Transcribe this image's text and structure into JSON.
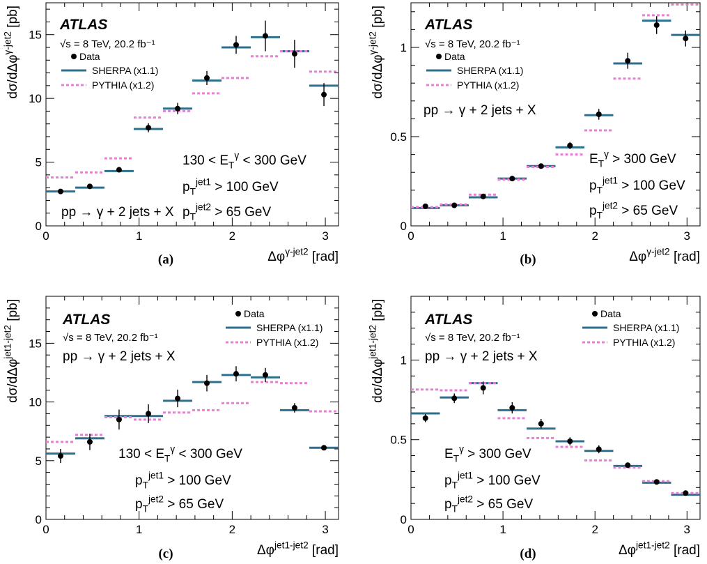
{
  "colors": {
    "data": "#000000",
    "sherpa": "#2e6f8e",
    "pythia": "#e77fd4"
  },
  "chart_data": [
    {
      "type": "scatter",
      "panel_caption": "(a)",
      "xlabel": "Δφ^{γ-jet2} [rad]",
      "ylabel": "dσ/dΔφ^{γ-jet2} [pb]",
      "xlim": [
        0,
        3.1416
      ],
      "ylim": [
        0,
        17.5
      ],
      "xticks": [
        0,
        1,
        2,
        3
      ],
      "yticks": [
        0,
        5,
        10,
        15
      ],
      "experiment": "ATLAS",
      "energy_label": "√s = 8 TeV, 20.2 fb⁻¹",
      "legend": {
        "data": "Data",
        "sherpa": "SHERPA (x1.1)",
        "pythia": "PYTHIA (x1.2)"
      },
      "annotations": [
        "130 < E_T^γ < 300 GeV",
        "p_T^{jet1} > 100 GeV",
        "p_T^{jet2} > 65 GeV",
        "pp → γ + 2 jets + X"
      ],
      "bin_edges": [
        0,
        0.314,
        0.628,
        0.942,
        1.257,
        1.571,
        1.885,
        2.199,
        2.513,
        2.827,
        3.1416
      ],
      "data_points": {
        "x": [
          0.157,
          0.471,
          0.785,
          1.1,
          1.414,
          1.728,
          2.042,
          2.356,
          2.67,
          2.985
        ],
        "y": [
          2.7,
          3.1,
          4.4,
          7.7,
          9.2,
          11.6,
          14.2,
          14.9,
          13.5,
          10.3
        ],
        "err": [
          0.12,
          0.15,
          0.2,
          0.35,
          0.45,
          0.55,
          0.7,
          1.2,
          1.1,
          0.9
        ]
      },
      "series": [
        {
          "name": "SHERPA (x1.1)",
          "values": [
            2.7,
            3.0,
            4.3,
            7.6,
            9.2,
            11.4,
            14.0,
            14.8,
            13.7,
            11.0
          ]
        },
        {
          "name": "PYTHIA (x1.2)",
          "values": [
            3.8,
            4.2,
            5.3,
            8.5,
            9.0,
            10.4,
            11.6,
            13.3,
            13.7,
            12.1
          ]
        }
      ]
    },
    {
      "type": "scatter",
      "panel_caption": "(b)",
      "xlabel": "Δφ^{γ-jet2} [rad]",
      "ylabel": "dσ/dΔφ^{γ-jet2} [pb]",
      "xlim": [
        0,
        3.1416
      ],
      "ylim": [
        0,
        1.25
      ],
      "xticks": [
        0,
        1,
        2,
        3
      ],
      "yticks": [
        0,
        0.5,
        1
      ],
      "experiment": "ATLAS",
      "energy_label": "√s = 8 TeV, 20.2 fb⁻¹",
      "legend": {
        "data": "Data",
        "sherpa": "SHERPA (x1.1)",
        "pythia": "PYTHIA (x1.2)"
      },
      "annotations": [
        "pp → γ + 2 jets + X",
        "E_T^γ > 300 GeV",
        "p_T^{jet1} > 100 GeV",
        "p_T^{jet2} > 65 GeV"
      ],
      "bin_edges": [
        0,
        0.314,
        0.628,
        0.942,
        1.257,
        1.571,
        1.885,
        2.199,
        2.513,
        2.827,
        3.1416
      ],
      "data_points": {
        "x": [
          0.157,
          0.471,
          0.785,
          1.1,
          1.414,
          1.728,
          2.042,
          2.356,
          2.67,
          2.985
        ],
        "y": [
          0.11,
          0.115,
          0.165,
          0.265,
          0.335,
          0.45,
          0.625,
          0.925,
          1.125,
          1.05
        ],
        "err": [
          0.008,
          0.008,
          0.01,
          0.012,
          0.015,
          0.02,
          0.03,
          0.045,
          0.05,
          0.045
        ]
      },
      "series": [
        {
          "name": "SHERPA (x1.1)",
          "values": [
            0.1,
            0.115,
            0.16,
            0.265,
            0.335,
            0.44,
            0.62,
            0.91,
            1.15,
            1.07
          ]
        },
        {
          "name": "PYTHIA (x1.2)",
          "values": [
            0.105,
            0.12,
            0.175,
            0.26,
            0.33,
            0.4,
            0.535,
            0.825,
            1.18,
            1.24
          ]
        }
      ]
    },
    {
      "type": "scatter",
      "panel_caption": "(c)",
      "xlabel": "Δφ^{jet1-jet2} [rad]",
      "ylabel": "dσ/dΔφ^{jet1-jet2} [pb]",
      "xlim": [
        0,
        3.1416
      ],
      "ylim": [
        0,
        19
      ],
      "xticks": [
        0,
        1,
        2,
        3
      ],
      "yticks": [
        0,
        5,
        10,
        15
      ],
      "experiment": "ATLAS",
      "energy_label": "√s = 8 TeV, 20.2 fb⁻¹",
      "legend": {
        "data": "Data",
        "sherpa": "SHERPA (x1.1)",
        "pythia": "PYTHIA (x1.2)"
      },
      "annotations": [
        "pp → γ + 2 jets + X",
        "130 < E_T^γ < 300 GeV",
        "p_T^{jet1} > 100 GeV",
        "p_T^{jet2} > 65 GeV"
      ],
      "bin_edges": [
        0,
        0.314,
        0.628,
        0.942,
        1.257,
        1.571,
        1.885,
        2.199,
        2.513,
        2.827,
        3.1416
      ],
      "data_points": {
        "x": [
          0.157,
          0.471,
          0.785,
          1.1,
          1.414,
          1.728,
          2.042,
          2.356,
          2.67,
          2.985
        ],
        "y": [
          5.4,
          6.6,
          8.5,
          9.0,
          10.3,
          11.6,
          12.4,
          12.3,
          9.5,
          6.1
        ],
        "err": [
          0.6,
          0.7,
          0.85,
          0.8,
          0.75,
          0.7,
          0.65,
          0.6,
          0.4,
          0.15
        ]
      },
      "series": [
        {
          "name": "SHERPA (x1.1)",
          "values": [
            5.6,
            6.9,
            8.8,
            8.8,
            10.1,
            11.7,
            12.3,
            12.1,
            9.3,
            6.1
          ]
        },
        {
          "name": "PYTHIA (x1.2)",
          "values": [
            6.6,
            7.2,
            8.7,
            8.5,
            9.1,
            9.3,
            9.9,
            11.7,
            11.6,
            9.2
          ]
        }
      ]
    },
    {
      "type": "scatter",
      "panel_caption": "(d)",
      "xlabel": "Δφ^{jet1-jet2} [rad]",
      "ylabel": "dσ/dΔφ^{jet1-jet2} [pb]",
      "xlim": [
        0,
        3.1416
      ],
      "ylim": [
        0,
        1.4
      ],
      "xticks": [
        0,
        1,
        2,
        3
      ],
      "yticks": [
        0,
        0.5,
        1
      ],
      "experiment": "ATLAS",
      "energy_label": "√s = 8 TeV, 20.2 fb⁻¹",
      "legend": {
        "data": "Data",
        "sherpa": "SHERPA (x1.1)",
        "pythia": "PYTHIA (x1.2)"
      },
      "annotations": [
        "pp → γ + 2 jets + X",
        "E_T^γ > 300 GeV",
        "p_T^{jet1} > 100 GeV",
        "p_T^{jet2} > 65 GeV"
      ],
      "bin_edges": [
        0,
        0.314,
        0.628,
        0.942,
        1.257,
        1.571,
        1.885,
        2.199,
        2.513,
        2.827,
        3.1416
      ],
      "data_points": {
        "x": [
          0.157,
          0.471,
          0.785,
          1.1,
          1.414,
          1.728,
          2.042,
          2.356,
          2.67,
          2.985
        ],
        "y": [
          0.635,
          0.76,
          0.825,
          0.7,
          0.6,
          0.49,
          0.44,
          0.34,
          0.235,
          0.165
        ],
        "err": [
          0.025,
          0.03,
          0.04,
          0.035,
          0.03,
          0.025,
          0.025,
          0.015,
          0.01,
          0.008
        ]
      },
      "series": [
        {
          "name": "SHERPA (x1.1)",
          "values": [
            0.665,
            0.765,
            0.855,
            0.685,
            0.57,
            0.49,
            0.43,
            0.335,
            0.23,
            0.155
          ]
        },
        {
          "name": "PYTHIA (x1.2)",
          "values": [
            0.815,
            0.81,
            0.855,
            0.635,
            0.51,
            0.455,
            0.37,
            0.325,
            0.24,
            0.165
          ]
        }
      ]
    }
  ]
}
